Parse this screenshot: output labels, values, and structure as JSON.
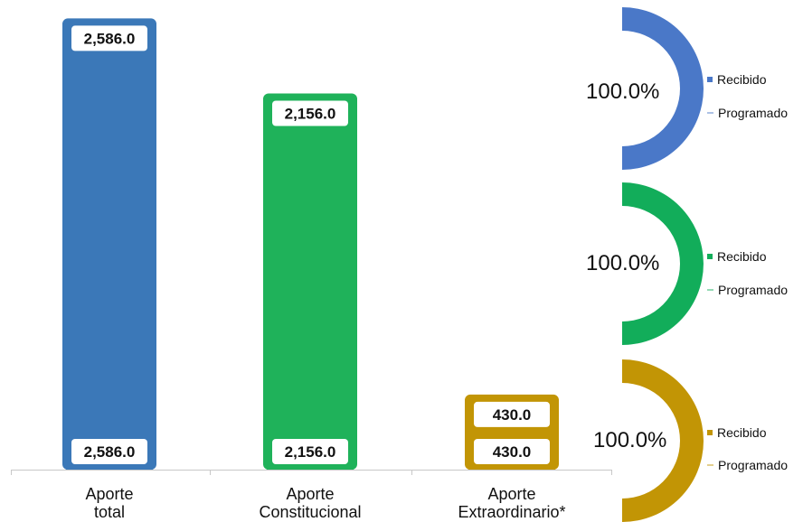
{
  "chart_data": [
    {
      "type": "bar",
      "categories": [
        [
          "Aporte",
          "total"
        ],
        [
          "Aporte",
          "Constitucional"
        ],
        [
          "Aporte",
          "Extraordinario*"
        ]
      ],
      "series": [
        {
          "values": [
            2586.0,
            2156.0,
            430.0
          ],
          "labels": [
            "2,586.0",
            "2,156.0",
            "430.0"
          ]
        },
        {
          "values": [
            2586.0,
            2156.0,
            430.0
          ],
          "labels": [
            "2,586.0",
            "2,156.0",
            "430.0"
          ]
        }
      ],
      "colors": [
        "#3b78b8",
        "#1fb25a",
        "#c29505"
      ],
      "ylim": [
        0,
        2640
      ]
    },
    {
      "type": "pie",
      "variant": "half-donut",
      "percent_label": "100.0%",
      "slices": [
        {
          "name": "Recibido",
          "value": 100
        },
        {
          "name": "Programado",
          "value": 0
        }
      ],
      "color": "#4a78c8"
    },
    {
      "type": "pie",
      "variant": "half-donut",
      "percent_label": "100.0%",
      "slices": [
        {
          "name": "Recibido",
          "value": 100
        },
        {
          "name": "Programado",
          "value": 0
        }
      ],
      "color": "#12ad5a"
    },
    {
      "type": "pie",
      "variant": "half-donut",
      "percent_label": "100.0%",
      "slices": [
        {
          "name": "Recibido",
          "value": 100
        },
        {
          "name": "Programado",
          "value": 0
        }
      ],
      "color": "#c29505"
    }
  ]
}
